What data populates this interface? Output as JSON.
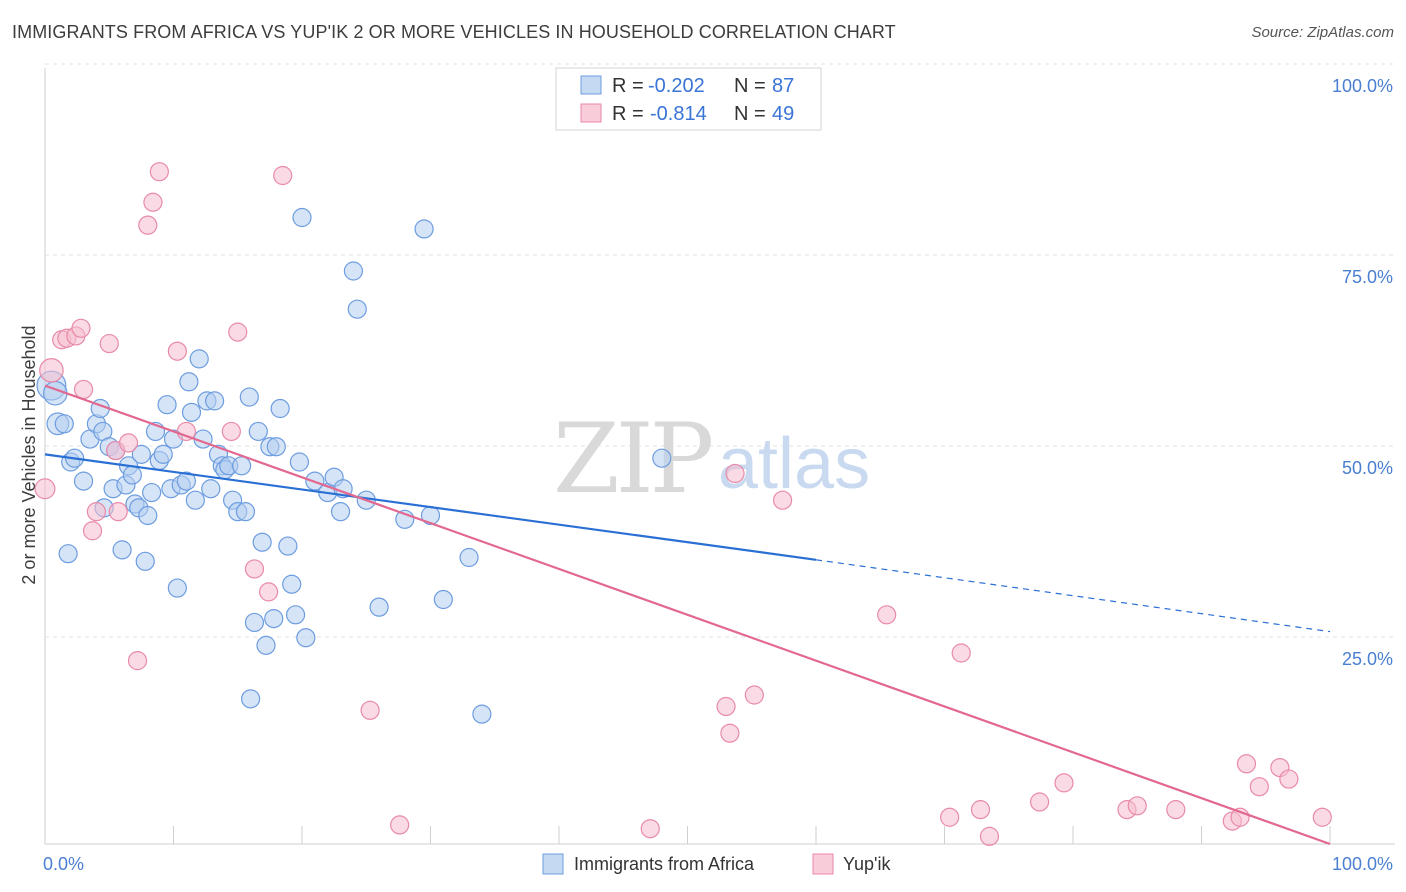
{
  "title": "IMMIGRANTS FROM AFRICA VS YUP'IK 2 OR MORE VEHICLES IN HOUSEHOLD CORRELATION CHART",
  "source": "Source: ZipAtlas.com",
  "watermark": {
    "zip": "ZIP",
    "atlas": "atlas"
  },
  "legend": {
    "r_label": "R =",
    "n_label": "N =",
    "rows": [
      {
        "r": "-0.202",
        "n": "87"
      },
      {
        "r": "-0.814",
        "n": "49"
      }
    ]
  },
  "chart_data": {
    "type": "scatter",
    "ylabel": "2 or more Vehicles in Household",
    "xlim": [
      0,
      100
    ],
    "ylim": [
      0,
      100
    ],
    "x_tick_labels": [
      "0.0%",
      "100.0%"
    ],
    "y_ticks": [
      {
        "value": 25,
        "label": "25.0%"
      },
      {
        "value": 50,
        "label": "50.0%"
      },
      {
        "value": 75,
        "label": "75.0%"
      },
      {
        "value": 100,
        "label": "100.0%"
      }
    ],
    "colors": {
      "blue": "#6d9de0",
      "pink": "#e88aa8",
      "blue_line": "#2a6fd4",
      "pink_line": "#e2688f"
    },
    "series": [
      {
        "name": "Immigrants from Africa",
        "color": "#6d9de0",
        "trend": {
          "x0": 0,
          "y0": 51,
          "x1": 60,
          "y1": 37.2,
          "x_dash_end": 100,
          "y_dash_end": 27.8
        },
        "points": [
          [
            0.5,
            60,
            1.6
          ],
          [
            0.8,
            59,
            1.3
          ],
          [
            1,
            55,
            1.2
          ],
          [
            1.5,
            55,
            1
          ],
          [
            2,
            50,
            1
          ],
          [
            2.3,
            50.5,
            1
          ],
          [
            1.8,
            38,
            1
          ],
          [
            3,
            47.5,
            1
          ],
          [
            3.5,
            53,
            1
          ],
          [
            4,
            55,
            1
          ],
          [
            4.5,
            54,
            1
          ],
          [
            4.3,
            57,
            1
          ],
          [
            5,
            52,
            1
          ],
          [
            5.5,
            51.5,
            1
          ],
          [
            4.6,
            44,
            1
          ],
          [
            5.3,
            46.5,
            1
          ],
          [
            6,
            38.5,
            1
          ],
          [
            6.3,
            47,
            1
          ],
          [
            6.5,
            49.5,
            1
          ],
          [
            6.8,
            48.3,
            1
          ],
          [
            7,
            44.5,
            1
          ],
          [
            7.3,
            44,
            1
          ],
          [
            7.5,
            51,
            1
          ],
          [
            7.8,
            37,
            1
          ],
          [
            8,
            43,
            1
          ],
          [
            8.3,
            46,
            1
          ],
          [
            8.6,
            54,
            1
          ],
          [
            8.9,
            50.2,
            1
          ],
          [
            9.2,
            51,
            1
          ],
          [
            9.5,
            57.5,
            1
          ],
          [
            9.8,
            46.5,
            1
          ],
          [
            10,
            53,
            1
          ],
          [
            10.3,
            33.5,
            1
          ],
          [
            10.6,
            47,
            1
          ],
          [
            11,
            47.5,
            1
          ],
          [
            11.2,
            60.5,
            1
          ],
          [
            11.4,
            56.5,
            1
          ],
          [
            11.7,
            45,
            1
          ],
          [
            12,
            63.5,
            1
          ],
          [
            12.3,
            53,
            1
          ],
          [
            12.6,
            58,
            1
          ],
          [
            12.9,
            46.5,
            1
          ],
          [
            13.2,
            58,
            1
          ],
          [
            13.5,
            51,
            1
          ],
          [
            13.8,
            49.5,
            1
          ],
          [
            14,
            49,
            1
          ],
          [
            14.3,
            49.5,
            1
          ],
          [
            14.6,
            45,
            1
          ],
          [
            15,
            43.5,
            1
          ],
          [
            15.3,
            49.5,
            1
          ],
          [
            15.6,
            43.5,
            1
          ],
          [
            15.9,
            58.5,
            1
          ],
          [
            16,
            19,
            1
          ],
          [
            16.3,
            29,
            1
          ],
          [
            16.6,
            54,
            1
          ],
          [
            16.9,
            39.5,
            1
          ],
          [
            17.2,
            26,
            1
          ],
          [
            17.5,
            52,
            1
          ],
          [
            17.8,
            29.5,
            1
          ],
          [
            18,
            52,
            1
          ],
          [
            18.3,
            57,
            1
          ],
          [
            18.9,
            39,
            1
          ],
          [
            19.2,
            34,
            1
          ],
          [
            19.5,
            30,
            1
          ],
          [
            19.8,
            50,
            1
          ],
          [
            20,
            82,
            1
          ],
          [
            20.3,
            27,
            1
          ],
          [
            21,
            47.5,
            1
          ],
          [
            22,
            46,
            1
          ],
          [
            22.5,
            48,
            1
          ],
          [
            23,
            43.5,
            1
          ],
          [
            23.2,
            46.5,
            1
          ],
          [
            24,
            75,
            1
          ],
          [
            24.3,
            70,
            1
          ],
          [
            25,
            45,
            1
          ],
          [
            26,
            31,
            1
          ],
          [
            28,
            42.5,
            1
          ],
          [
            29.5,
            80.5,
            1
          ],
          [
            30,
            43,
            1
          ],
          [
            31,
            32,
            1
          ],
          [
            33,
            37.5,
            1
          ],
          [
            34,
            17,
            1
          ],
          [
            48,
            50.5,
            1
          ],
          [
            3.6,
            65.5,
            0.0001
          ]
        ]
      },
      {
        "name": "Yup'ik",
        "color": "#e88aa8",
        "trend": {
          "x0": 0,
          "y0": 60,
          "x1": 100,
          "y1": 0
        },
        "points": [
          [
            0,
            46.5,
            1.1
          ],
          [
            0.5,
            62,
            1.3
          ],
          [
            1.3,
            66,
            1
          ],
          [
            1.7,
            66.2,
            1
          ],
          [
            2.4,
            66.5,
            1
          ],
          [
            2.8,
            67.5,
            1
          ],
          [
            3,
            59.5,
            1
          ],
          [
            3.7,
            41,
            1
          ],
          [
            4,
            43.5,
            1
          ],
          [
            5,
            65.5,
            1
          ],
          [
            5.5,
            51.5,
            1
          ],
          [
            5.7,
            43.5,
            1
          ],
          [
            6.5,
            52.5,
            1
          ],
          [
            7.2,
            24,
            1
          ],
          [
            8,
            81,
            1
          ],
          [
            8.4,
            84,
            1
          ],
          [
            8.9,
            88,
            1
          ],
          [
            10.3,
            64.5,
            1
          ],
          [
            11,
            54,
            1
          ],
          [
            14.5,
            54,
            1
          ],
          [
            15,
            67,
            1
          ],
          [
            16.3,
            36,
            1
          ],
          [
            17.4,
            33,
            1
          ],
          [
            18.5,
            87.5,
            1
          ],
          [
            25.3,
            17.5,
            1
          ],
          [
            27.6,
            2.5,
            1
          ],
          [
            47.1,
            2,
            1
          ],
          [
            53,
            18,
            1
          ],
          [
            53.3,
            14.5,
            1
          ],
          [
            53.7,
            48.5,
            1
          ],
          [
            55.2,
            19.5,
            1
          ],
          [
            57.4,
            45,
            1
          ],
          [
            65.5,
            30,
            1
          ],
          [
            70.4,
            3.5,
            1
          ],
          [
            71.3,
            25,
            1
          ],
          [
            72.8,
            4.5,
            1
          ],
          [
            73.5,
            1,
            1
          ],
          [
            77.4,
            5.5,
            1
          ],
          [
            79.3,
            8,
            1
          ],
          [
            84.2,
            4.5,
            1
          ],
          [
            85,
            5,
            1
          ],
          [
            88,
            4.5,
            1
          ],
          [
            92.4,
            3,
            1
          ],
          [
            93,
            3.5,
            1
          ],
          [
            93.5,
            10.5,
            1
          ],
          [
            94.5,
            7.5,
            1
          ],
          [
            96.1,
            10,
            1
          ],
          [
            96.8,
            8.5,
            1
          ],
          [
            99.4,
            3.5,
            1
          ]
        ]
      }
    ]
  }
}
